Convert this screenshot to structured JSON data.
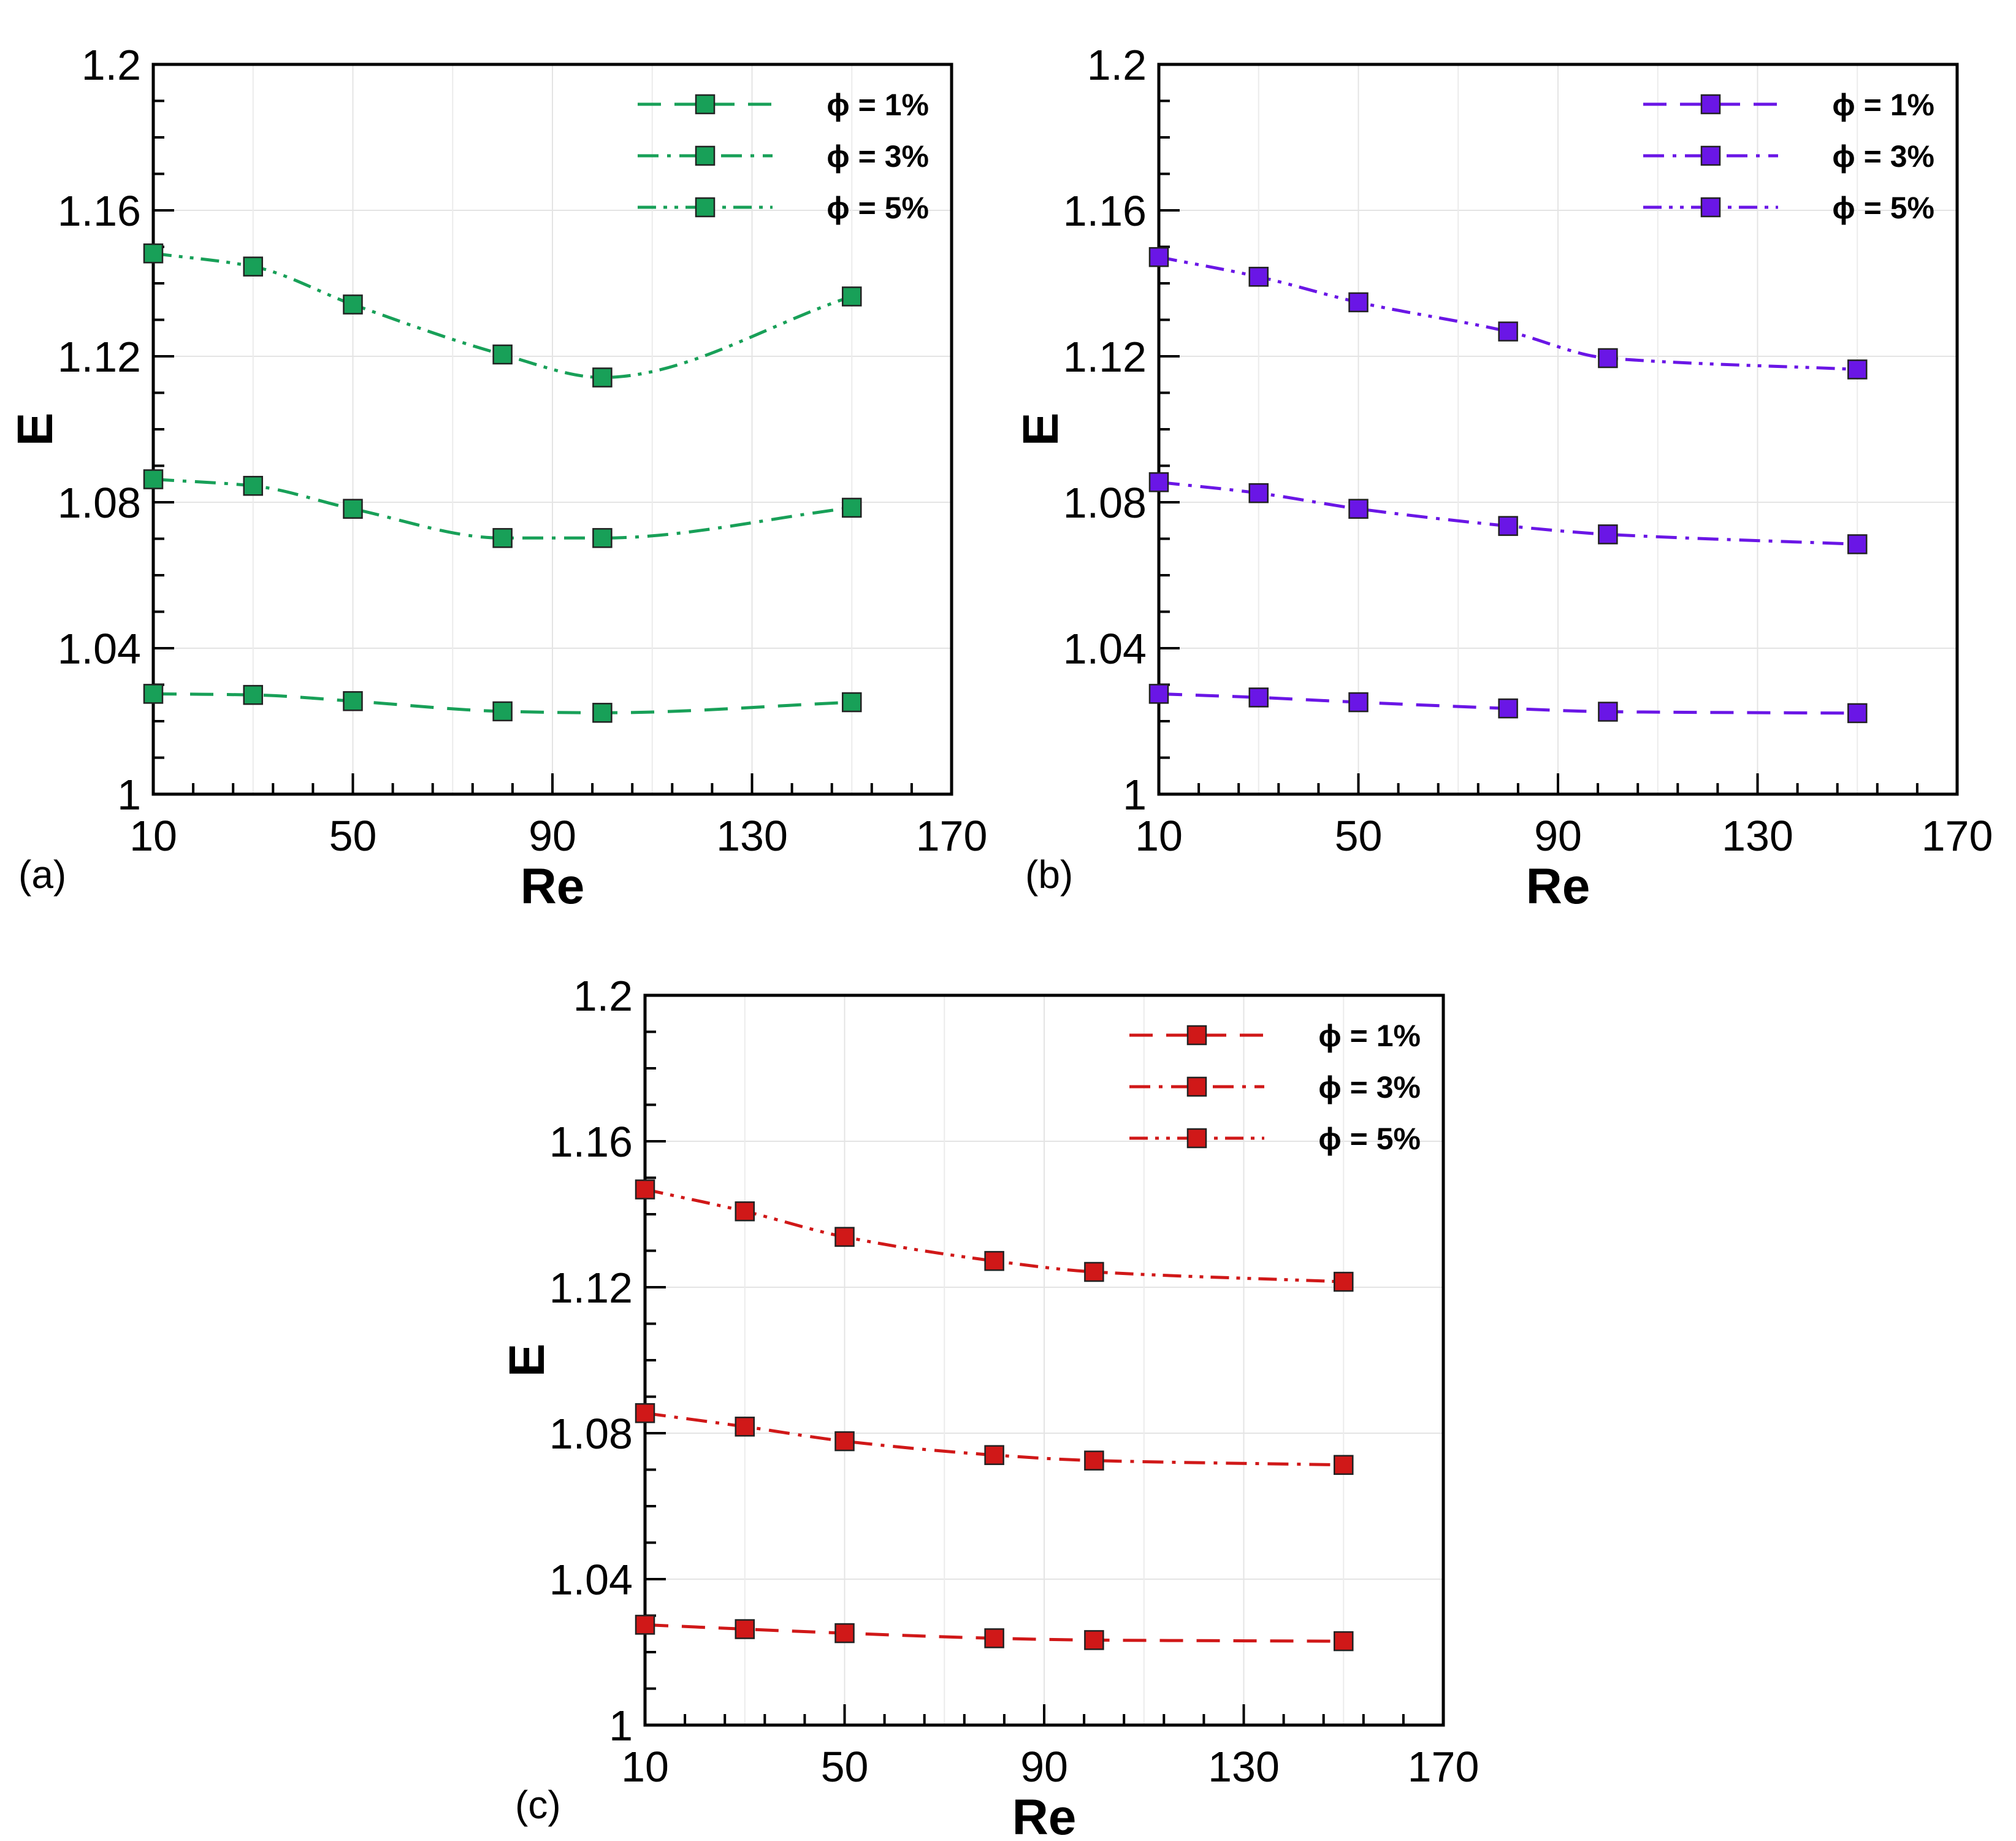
{
  "chart_data": [
    {
      "type": "line",
      "panel_label": "(a)",
      "xlabel": "Re",
      "ylabel": "E",
      "xlim": [
        10,
        170
      ],
      "ylim": [
        1,
        1.2
      ],
      "xticks": [
        10,
        50,
        90,
        130,
        170
      ],
      "xtick_labels": [
        "10",
        "50",
        "90",
        "130",
        "170"
      ],
      "yticks": [
        1,
        1.04,
        1.08,
        1.12,
        1.16,
        1.2
      ],
      "ytick_labels": [
        "1",
        "1.04",
        "1.08",
        "1.12",
        "1.16",
        "1.2"
      ],
      "grid": true,
      "legend_position": "top-right",
      "color": "#18a058",
      "x": [
        10,
        30,
        50,
        80,
        100,
        150
      ],
      "series": [
        {
          "name": "ϕ = 1%",
          "dash": "dash",
          "values": [
            1.0275,
            1.0272,
            1.0255,
            1.0227,
            1.0223,
            1.0252
          ]
        },
        {
          "name": "ϕ = 3%",
          "dash": "dashdot",
          "values": [
            1.0863,
            1.0845,
            1.0782,
            1.0702,
            1.0702,
            1.0785
          ]
        },
        {
          "name": "ϕ = 5%",
          "dash": "dashdotdot",
          "values": [
            1.1482,
            1.1446,
            1.1342,
            1.1205,
            1.1142,
            1.1364
          ]
        }
      ]
    },
    {
      "type": "line",
      "panel_label": "(b)",
      "xlabel": "Re",
      "ylabel": "E",
      "xlim": [
        10,
        170
      ],
      "ylim": [
        1,
        1.2
      ],
      "xticks": [
        10,
        50,
        90,
        130,
        170
      ],
      "xtick_labels": [
        "10",
        "50",
        "90",
        "130",
        "170"
      ],
      "yticks": [
        1,
        1.04,
        1.08,
        1.12,
        1.16,
        1.2
      ],
      "ytick_labels": [
        "1",
        "1.04",
        "1.08",
        "1.12",
        "1.16",
        "1.2"
      ],
      "grid": true,
      "legend_position": "top-right",
      "color": "#6a16e6",
      "x": [
        10,
        30,
        50,
        80,
        100,
        150
      ],
      "series": [
        {
          "name": "ϕ = 1%",
          "dash": "dash",
          "values": [
            1.0275,
            1.0265,
            1.0252,
            1.0235,
            1.0226,
            1.0222
          ]
        },
        {
          "name": "ϕ = 3%",
          "dash": "dashdot",
          "values": [
            1.0855,
            1.0825,
            1.0782,
            1.0735,
            1.0712,
            1.0685
          ]
        },
        {
          "name": "ϕ = 5%",
          "dash": "dashdotdot",
          "values": [
            1.1472,
            1.1418,
            1.1348,
            1.1268,
            1.1195,
            1.1164
          ]
        }
      ]
    },
    {
      "type": "line",
      "panel_label": "(c)",
      "xlabel": "Re",
      "ylabel": "E",
      "xlim": [
        10,
        170
      ],
      "ylim": [
        1,
        1.2
      ],
      "xticks": [
        10,
        50,
        90,
        130,
        170
      ],
      "xtick_labels": [
        "10",
        "50",
        "90",
        "130",
        "170"
      ],
      "yticks": [
        1,
        1.04,
        1.08,
        1.12,
        1.16,
        1.2
      ],
      "ytick_labels": [
        "1",
        "1.04",
        "1.08",
        "1.12",
        "1.16",
        "1.2"
      ],
      "grid": true,
      "legend_position": "top-right",
      "color": "#d01818",
      "x": [
        10,
        30,
        50,
        80,
        100,
        150
      ],
      "series": [
        {
          "name": "ϕ = 1%",
          "dash": "dash",
          "values": [
            1.0275,
            1.0263,
            1.0252,
            1.0238,
            1.0233,
            1.023
          ]
        },
        {
          "name": "ϕ = 3%",
          "dash": "dashdot",
          "values": [
            1.0855,
            1.0818,
            1.0778,
            1.074,
            1.0725,
            1.0713
          ]
        },
        {
          "name": "ϕ = 5%",
          "dash": "dashdotdot",
          "values": [
            1.1468,
            1.1408,
            1.1338,
            1.1272,
            1.1242,
            1.1215
          ]
        }
      ]
    }
  ]
}
